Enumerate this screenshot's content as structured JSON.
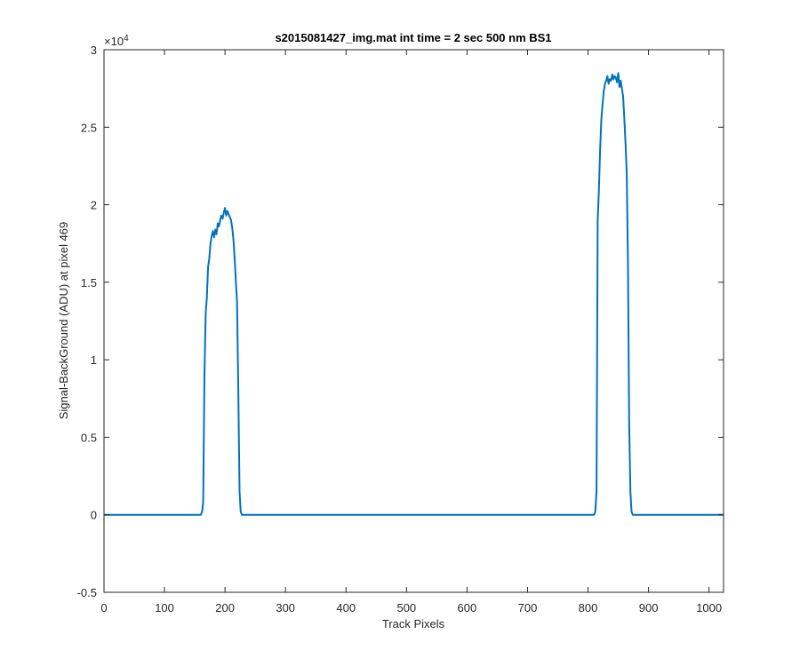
{
  "chart_data": {
    "type": "line",
    "title": "s2015081427_img.mat int time = 2 sec  500 nm BS1",
    "xlabel": "Track Pixels",
    "ylabel": "Signal-BackGround (ADU) at pixel 469",
    "xlim": [
      0,
      1024
    ],
    "ylim": [
      -5000,
      30000
    ],
    "xticks": [
      0,
      100,
      200,
      300,
      400,
      500,
      600,
      700,
      800,
      900,
      1000
    ],
    "yticks": [
      -0.5,
      0,
      0.5,
      1,
      1.5,
      2,
      2.5,
      3
    ],
    "ytick_labels": [
      "-0.5",
      "0",
      "0.5",
      "1",
      "1.5",
      "2",
      "2.5",
      "3"
    ],
    "y_exponent_label": "×10",
    "y_exponent_power": "4",
    "grid": false,
    "line_color": "#0072BD",
    "series": [
      {
        "x": [
          0,
          150,
          160,
          162,
          164,
          166,
          168,
          170,
          172,
          174,
          176,
          178,
          180,
          182,
          184,
          186,
          188,
          190,
          192,
          194,
          196,
          198,
          200,
          202,
          204,
          206,
          208,
          210,
          212,
          214,
          216,
          218,
          220,
          222,
          224,
          226,
          228,
          230,
          240,
          400,
          600,
          800,
          810,
          812,
          814,
          816,
          818,
          820,
          822,
          824,
          826,
          828,
          830,
          832,
          834,
          836,
          838,
          840,
          842,
          844,
          846,
          848,
          850,
          852,
          854,
          856,
          858,
          860,
          862,
          864,
          866,
          868,
          870,
          872,
          874,
          876,
          878,
          880,
          890,
          1024
        ],
        "y": [
          0,
          0,
          0,
          200,
          800,
          9000,
          13000,
          14000,
          16000,
          16500,
          17500,
          18000,
          18300,
          17900,
          18400,
          18100,
          18800,
          18600,
          19000,
          19300,
          19100,
          19500,
          19800,
          19300,
          19600,
          19400,
          19200,
          19000,
          18500,
          17700,
          16500,
          15000,
          13700,
          8000,
          1500,
          200,
          0,
          0,
          0,
          0,
          0,
          0,
          0,
          200,
          1500,
          19000,
          21000,
          23500,
          25500,
          26500,
          27300,
          27800,
          28000,
          28300,
          27800,
          28100,
          28000,
          28400,
          28100,
          28300,
          28200,
          27900,
          28500,
          27600,
          28000,
          27500,
          27000,
          25500,
          24000,
          22000,
          16000,
          6000,
          1500,
          200,
          0,
          0,
          0,
          0,
          0,
          0
        ]
      }
    ]
  }
}
